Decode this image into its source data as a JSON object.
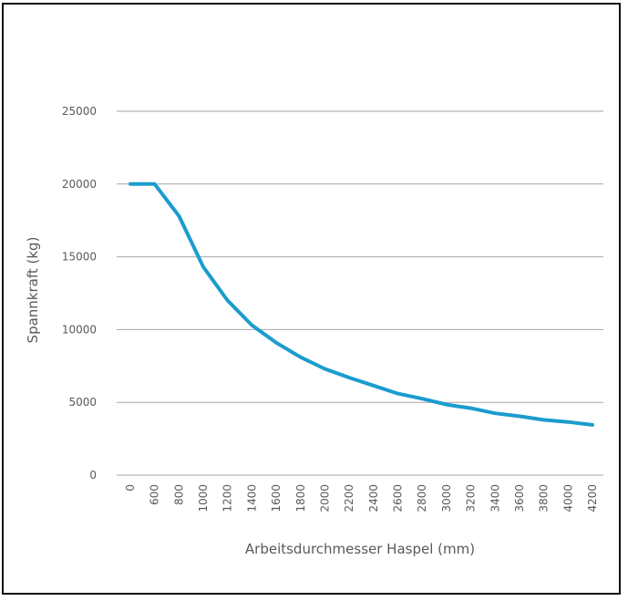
{
  "chart_data": {
    "type": "line",
    "title": "",
    "xlabel": "Arbeitsdurchmesser Haspel (mm)",
    "ylabel": "Spannkraft (kg)",
    "ylim": [
      0,
      25000
    ],
    "yticks": [
      0,
      5000,
      10000,
      15000,
      20000,
      25000
    ],
    "ytick_labels": [
      "0",
      "5000",
      "10000",
      "15000",
      "20000",
      "25000"
    ],
    "categories": [
      "0",
      "600",
      "800",
      "1000",
      "1200",
      "1400",
      "1600",
      "1800",
      "2000",
      "2200",
      "2400",
      "2600",
      "2800",
      "3000",
      "3200",
      "3400",
      "3600",
      "3800",
      "4000",
      "4200"
    ],
    "series": [
      {
        "values": [
          20000,
          20000,
          17800,
          14300,
          12000,
          10300,
          9100,
          8100,
          7300,
          6700,
          6150,
          5600,
          5250,
          4850,
          4600,
          4250,
          4050,
          3800,
          3650,
          3450
        ]
      }
    ],
    "grid": true,
    "legend": "none",
    "line_color": "#1b9ccd",
    "grid_color": "#a6a6a6",
    "text_color": "#595959"
  }
}
